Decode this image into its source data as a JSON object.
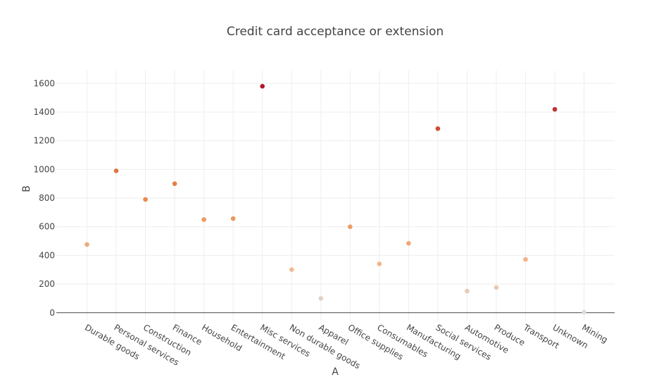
{
  "chart_data": {
    "type": "scatter",
    "title": "Credit card acceptance or extension",
    "xlabel": "A",
    "ylabel": "B",
    "ylim": [
      -55,
      1690
    ],
    "yticks": [
      0,
      200,
      400,
      600,
      800,
      1000,
      1200,
      1400,
      1600
    ],
    "grid": true,
    "categories": [
      "Durable goods",
      "Personal services",
      "Construction",
      "Finance",
      "Household",
      "Entertainment",
      "Misc services",
      "Non durable goods",
      "Apparel",
      "Office supplies",
      "Consumables",
      "Manufacturing",
      "Social services",
      "Automotive",
      "Produce",
      "Transport",
      "Unknown",
      "Mining"
    ],
    "values": [
      476,
      990,
      790,
      900,
      650,
      657,
      1580,
      301,
      100,
      600,
      341,
      484,
      1284,
      151,
      176,
      372,
      1419,
      4
    ],
    "colorscale": [
      "#dcdcdc",
      "#f5b07f",
      "#e88a4e",
      "#d2613a",
      "#b21428"
    ]
  }
}
